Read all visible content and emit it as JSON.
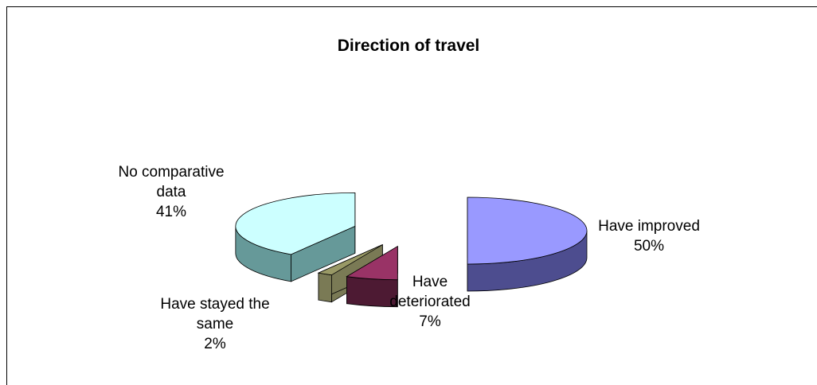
{
  "chart_data": {
    "type": "pie3d",
    "title": "Direction of travel",
    "categories": [
      "Have improved",
      "Have deteriorated",
      "Have stayed the same",
      "No comparative data"
    ],
    "values": [
      50,
      7,
      2,
      41
    ],
    "value_labels": [
      "50%",
      "7%",
      "2%",
      "41%"
    ],
    "colors": [
      "#9999ff",
      "#993366",
      "#999966",
      "#ccffff"
    ],
    "side_colors": [
      "#4d4d8f",
      "#4d1a33",
      "#7a7a55",
      "#669999"
    ]
  }
}
